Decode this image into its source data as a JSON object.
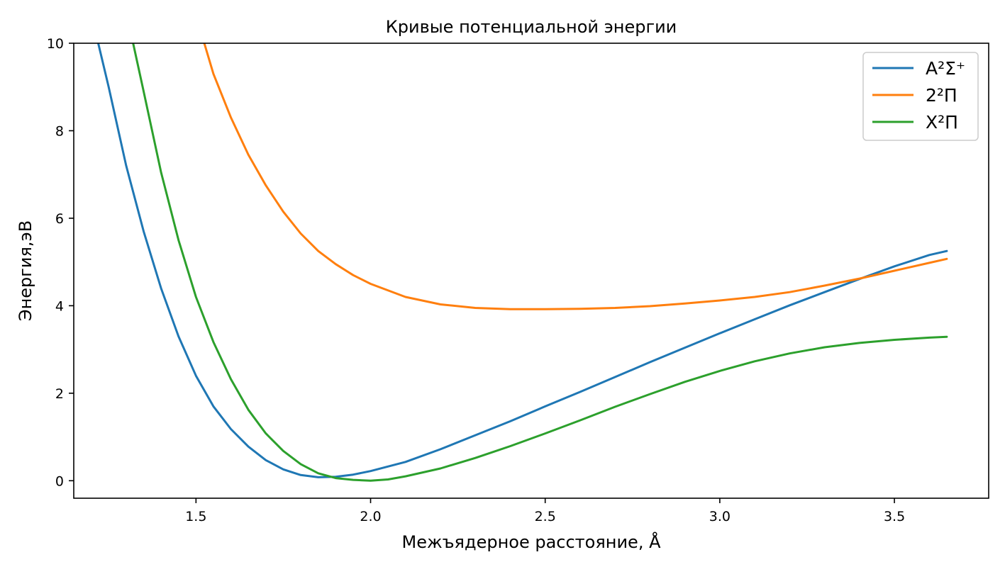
{
  "chart_data": {
    "type": "line",
    "title": "Кривые потенциальной энергии",
    "xlabel": "Межъядерное расстояние, Å",
    "ylabel": "Энергия,эВ",
    "xlim": [
      1.15,
      3.77
    ],
    "ylim": [
      -0.4,
      10.0
    ],
    "x_ticks": [
      1.5,
      2.0,
      2.5,
      3.0,
      3.5
    ],
    "x_tick_labels": [
      "1.5",
      "2.0",
      "2.5",
      "3.0",
      "3.5"
    ],
    "y_ticks": [
      0,
      2,
      4,
      6,
      8,
      10
    ],
    "y_tick_labels": [
      "0",
      "2",
      "4",
      "6",
      "8",
      "10"
    ],
    "grid": false,
    "legend_position": "top-right",
    "series": [
      {
        "name": "A²Σ⁺",
        "color": "#1f77b4",
        "x": [
          1.22,
          1.25,
          1.3,
          1.35,
          1.4,
          1.45,
          1.5,
          1.55,
          1.6,
          1.65,
          1.7,
          1.75,
          1.8,
          1.85,
          1.9,
          1.95,
          2.0,
          2.1,
          2.2,
          2.3,
          2.4,
          2.5,
          2.6,
          2.7,
          2.8,
          2.9,
          3.0,
          3.1,
          3.2,
          3.3,
          3.4,
          3.5,
          3.6,
          3.65
        ],
        "y": [
          10.0,
          9.0,
          7.2,
          5.7,
          4.4,
          3.3,
          2.4,
          1.7,
          1.18,
          0.78,
          0.47,
          0.26,
          0.13,
          0.08,
          0.09,
          0.14,
          0.22,
          0.43,
          0.72,
          1.04,
          1.36,
          1.7,
          2.03,
          2.37,
          2.71,
          3.04,
          3.37,
          3.69,
          4.01,
          4.31,
          4.61,
          4.9,
          5.16,
          5.25
        ]
      },
      {
        "name": "2²Π",
        "color": "#ff7f0e",
        "x": [
          1.52,
          1.55,
          1.6,
          1.65,
          1.7,
          1.75,
          1.8,
          1.85,
          1.9,
          1.95,
          2.0,
          2.1,
          2.2,
          2.3,
          2.4,
          2.5,
          2.6,
          2.7,
          2.8,
          2.9,
          3.0,
          3.1,
          3.2,
          3.3,
          3.4,
          3.5,
          3.6,
          3.65
        ],
        "y": [
          10.1,
          9.3,
          8.3,
          7.45,
          6.75,
          6.15,
          5.65,
          5.25,
          4.95,
          4.7,
          4.5,
          4.2,
          4.03,
          3.95,
          3.92,
          3.92,
          3.93,
          3.95,
          3.99,
          4.05,
          4.12,
          4.2,
          4.31,
          4.46,
          4.62,
          4.8,
          4.98,
          5.07
        ]
      },
      {
        "name": "X²Π",
        "color": "#2ca02c",
        "x": [
          1.32,
          1.35,
          1.4,
          1.45,
          1.5,
          1.55,
          1.6,
          1.65,
          1.7,
          1.75,
          1.8,
          1.85,
          1.9,
          1.95,
          2.0,
          2.05,
          2.1,
          2.2,
          2.3,
          2.4,
          2.5,
          2.6,
          2.7,
          2.8,
          2.9,
          3.0,
          3.1,
          3.2,
          3.3,
          3.4,
          3.5,
          3.6,
          3.65
        ],
        "y": [
          10.0,
          8.9,
          7.05,
          5.5,
          4.2,
          3.17,
          2.32,
          1.62,
          1.08,
          0.68,
          0.38,
          0.17,
          0.06,
          0.02,
          0.0,
          0.03,
          0.1,
          0.28,
          0.52,
          0.79,
          1.08,
          1.38,
          1.69,
          1.98,
          2.26,
          2.51,
          2.73,
          2.91,
          3.05,
          3.15,
          3.22,
          3.27,
          3.29
        ]
      }
    ]
  }
}
